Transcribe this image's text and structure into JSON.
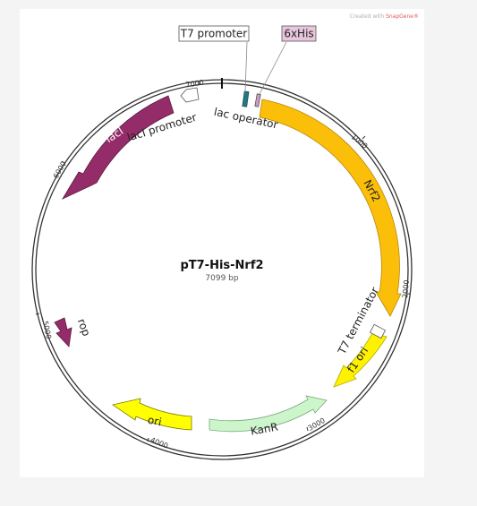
{
  "credit": {
    "prefix": "Created with",
    "brand": "SnapGene®"
  },
  "plasmid": {
    "name": "pT7-His-Nrf2",
    "size_label": "7099 bp",
    "length": 7099
  },
  "ticks": [
    "1000",
    "2000",
    "3000",
    "4000",
    "5000",
    "6000",
    "7000"
  ],
  "features": [
    {
      "id": "nrf2",
      "label": "Nrf2",
      "color": "#fbbf09",
      "label_color": "#222222"
    },
    {
      "id": "f1ori",
      "label": "f1 ori",
      "color": "#fff200",
      "label_color": "#222222"
    },
    {
      "id": "kanr",
      "label": "KanR",
      "color": "#ccf5cc",
      "label_color": "#222222"
    },
    {
      "id": "ori",
      "label": "ori",
      "color": "#ffff00",
      "label_color": "#222222"
    },
    {
      "id": "rop",
      "label": "rop",
      "color": "#952c6a",
      "label_color": "#222222"
    },
    {
      "id": "laci",
      "label": "lacI",
      "color": "#952c6a",
      "label_color": "#ffffff"
    }
  ],
  "annotations": {
    "t7_promoter": "T7 promoter",
    "his": "6xHis",
    "lac_operator": "lac operator",
    "laci_promoter": "lacI promoter",
    "t7_terminator": "T7 terminator"
  }
}
